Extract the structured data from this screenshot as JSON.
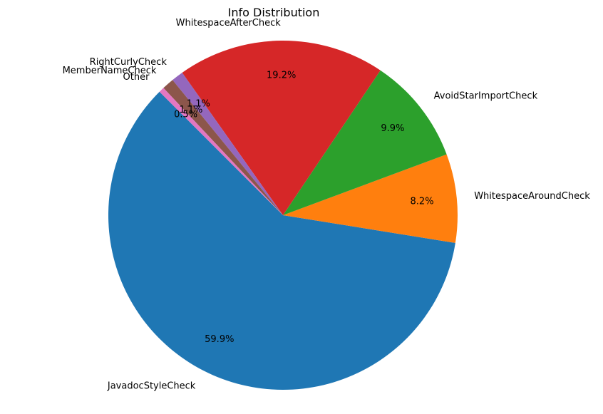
{
  "chart_data": {
    "type": "pie",
    "title": "Info Distribution",
    "start_angle_deg": 135,
    "direction": "counterclockwise",
    "slices": [
      {
        "label": "JavadocStyleCheck",
        "value": 59.9,
        "pct_label": "59.9%",
        "color": "#1f77b4"
      },
      {
        "label": "WhitespaceAroundCheck",
        "value": 8.2,
        "pct_label": "8.2%",
        "color": "#ff7f0e"
      },
      {
        "label": "AvoidStarImportCheck",
        "value": 9.9,
        "pct_label": "9.9%",
        "color": "#2ca02c"
      },
      {
        "label": "WhitespaceAfterCheck",
        "value": 19.2,
        "pct_label": "19.2%",
        "color": "#d62728"
      },
      {
        "label": "RightCurlyCheck",
        "value": 1.1,
        "pct_label": "1.1%",
        "color": "#9467bd"
      },
      {
        "label": "MemberNameCheck",
        "value": 1.1,
        "pct_label": "1.1%",
        "color": "#8c564b"
      },
      {
        "label": "Other",
        "value": 0.5,
        "pct_label": "0.5%",
        "color": "#e377c2"
      }
    ]
  }
}
